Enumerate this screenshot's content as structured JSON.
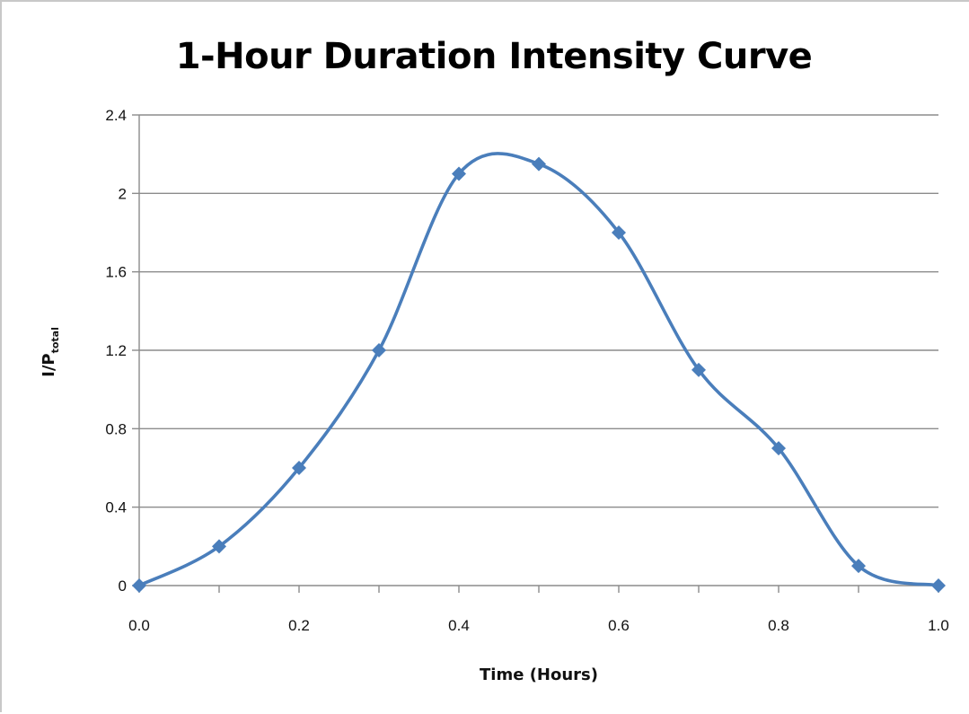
{
  "chart_data": {
    "type": "line",
    "title": "1-Hour Duration Intensity Curve",
    "xlabel": "Time (Hours)",
    "ylabel_main": "I/P",
    "ylabel_sub": "total",
    "x": [
      0.0,
      0.1,
      0.2,
      0.3,
      0.4,
      0.5,
      0.6,
      0.7,
      0.8,
      0.9,
      1.0
    ],
    "series": [
      {
        "values": [
          0.0,
          0.2,
          0.6,
          1.2,
          2.1,
          2.15,
          1.8,
          1.1,
          0.7,
          0.1,
          0.0
        ]
      }
    ],
    "xlim": [
      0.0,
      1.0
    ],
    "ylim": [
      0,
      2.4
    ],
    "xticks": [
      0.0,
      0.2,
      0.4,
      0.6,
      0.8,
      1.0
    ],
    "xtick_labels": [
      "0.0",
      "0.2",
      "0.4",
      "0.6",
      "0.8",
      "1.0"
    ],
    "yticks": [
      0,
      0.4,
      0.8,
      1.2,
      1.6,
      2.0,
      2.4
    ],
    "ytick_labels": [
      "0",
      "0.4",
      "0.8",
      "1.2",
      "1.6",
      "2",
      "2.4"
    ],
    "grid": "horizontal",
    "smooth": true,
    "marker": "diamond",
    "legend": "none",
    "colors": {
      "series": "#4a7ebb",
      "grid": "#8c8c8c",
      "axis": "#8c8c8c"
    }
  }
}
